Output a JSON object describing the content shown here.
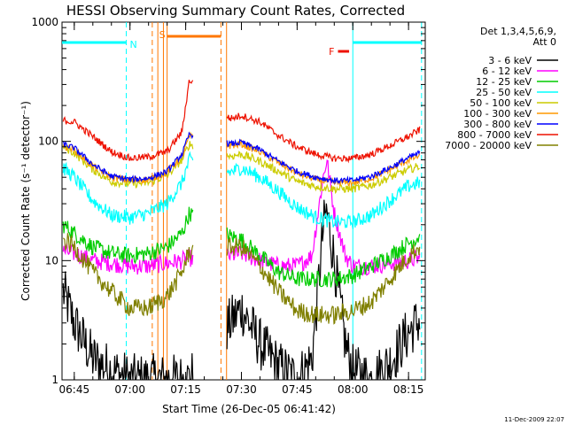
{
  "chart_data": {
    "type": "line",
    "title": "HESSI Observing Summary Count Rates, Corrected",
    "xlabel": "Start Time (26-Dec-05 06:41:42)",
    "ylabel": "Corrected Count Rate (s⁻¹ detector⁻¹)",
    "yscale": "log",
    "ylim": [
      1,
      1000
    ],
    "xlim": [
      "06:41:42",
      "08:19:30"
    ],
    "y_ticks": [
      "1",
      "10",
      "100",
      "1000"
    ],
    "x_ticks": [
      {
        "t": "06:45",
        "label": "06:45"
      },
      {
        "t": "07:00",
        "label": "07:00"
      },
      {
        "t": "07:15",
        "label": "07:15"
      },
      {
        "t": "07:30",
        "label": "07:30"
      },
      {
        "t": "07:45",
        "label": "07:45"
      },
      {
        "t": "08:00",
        "label": "08:00"
      },
      {
        "t": "08:15",
        "label": "08:15"
      }
    ],
    "legend": {
      "placement": "right",
      "header": [
        "Det 1,3,4,5,6,9,",
        "Att 0"
      ]
    },
    "data_gap": [
      "07:17:00",
      "07:26:00"
    ],
    "series": [
      {
        "name": "3 - 6 keV",
        "color": "#000000",
        "noise": 0.45,
        "points": [
          [
            "06:42",
            5.5
          ],
          [
            "06:45",
            3.0
          ],
          [
            "06:50",
            1.5
          ],
          [
            "06:55",
            1.2
          ],
          [
            "07:00",
            1.0
          ],
          [
            "07:05",
            1.0
          ],
          [
            "07:10",
            1.0
          ],
          [
            "07:14",
            1.0
          ],
          [
            "07:16",
            1.0
          ],
          [
            "07:27",
            3.0
          ],
          [
            "07:30",
            4.0
          ],
          [
            "07:35",
            2.0
          ],
          [
            "07:40",
            1.3
          ],
          [
            "07:45",
            1.0
          ],
          [
            "07:49",
            1.5
          ],
          [
            "07:52",
            18.0
          ],
          [
            "07:53",
            26.0
          ],
          [
            "07:55",
            10.0
          ],
          [
            "07:58",
            2.0
          ],
          [
            "08:00",
            1.2
          ],
          [
            "08:05",
            1.0
          ],
          [
            "08:10",
            1.4
          ],
          [
            "08:15",
            2.5
          ],
          [
            "08:18",
            3.2
          ]
        ]
      },
      {
        "name": "6 - 12 keV",
        "color": "#ff00ff",
        "noise": 0.15,
        "points": [
          [
            "06:42",
            12.0
          ],
          [
            "06:45",
            11.5
          ],
          [
            "06:50",
            10.0
          ],
          [
            "06:55",
            9.5
          ],
          [
            "07:00",
            9.0
          ],
          [
            "07:05",
            9.0
          ],
          [
            "07:10",
            9.5
          ],
          [
            "07:14",
            10.0
          ],
          [
            "07:16",
            10.5
          ],
          [
            "07:27",
            11.0
          ],
          [
            "07:30",
            11.5
          ],
          [
            "07:35",
            10.0
          ],
          [
            "07:40",
            9.0
          ],
          [
            "07:45",
            9.0
          ],
          [
            "07:49",
            11.0
          ],
          [
            "07:52",
            50.0
          ],
          [
            "07:53",
            70.0
          ],
          [
            "07:55",
            25.0
          ],
          [
            "07:58",
            11.0
          ],
          [
            "08:00",
            9.0
          ],
          [
            "08:05",
            9.0
          ],
          [
            "08:10",
            9.5
          ],
          [
            "08:15",
            10.0
          ],
          [
            "08:18",
            10.5
          ]
        ]
      },
      {
        "name": "12 - 25 keV",
        "color": "#00cc00",
        "noise": 0.14,
        "points": [
          [
            "06:42",
            20.0
          ],
          [
            "06:45",
            17.0
          ],
          [
            "06:50",
            13.0
          ],
          [
            "06:55",
            11.5
          ],
          [
            "07:00",
            11.0
          ],
          [
            "07:05",
            11.5
          ],
          [
            "07:10",
            13.0
          ],
          [
            "07:14",
            17.0
          ],
          [
            "07:16",
            25.0
          ],
          [
            "07:27",
            16.0
          ],
          [
            "07:30",
            15.0
          ],
          [
            "07:35",
            11.0
          ],
          [
            "07:40",
            8.0
          ],
          [
            "07:45",
            7.0
          ],
          [
            "07:50",
            7.0
          ],
          [
            "07:55",
            7.0
          ],
          [
            "08:00",
            7.5
          ],
          [
            "08:05",
            9.0
          ],
          [
            "08:10",
            11.0
          ],
          [
            "08:15",
            14.0
          ],
          [
            "08:18",
            16.0
          ]
        ]
      },
      {
        "name": "25 - 50 keV",
        "color": "#00ffff",
        "noise": 0.12,
        "points": [
          [
            "06:42",
            60.0
          ],
          [
            "06:45",
            50.0
          ],
          [
            "06:50",
            32.0
          ],
          [
            "06:55",
            24.0
          ],
          [
            "07:00",
            23.0
          ],
          [
            "07:05",
            25.0
          ],
          [
            "07:10",
            30.0
          ],
          [
            "07:14",
            45.0
          ],
          [
            "07:16",
            70.0
          ],
          [
            "07:27",
            55.0
          ],
          [
            "07:30",
            60.0
          ],
          [
            "07:35",
            50.0
          ],
          [
            "07:40",
            38.0
          ],
          [
            "07:45",
            28.0
          ],
          [
            "07:50",
            23.0
          ],
          [
            "07:55",
            21.0
          ],
          [
            "08:00",
            21.0
          ],
          [
            "08:05",
            24.0
          ],
          [
            "08:10",
            32.0
          ],
          [
            "08:15",
            42.0
          ],
          [
            "08:18",
            45.0
          ]
        ]
      },
      {
        "name": "50 - 100 keV",
        "color": "#cccc00",
        "noise": 0.07,
        "points": [
          [
            "06:42",
            90.0
          ],
          [
            "06:45",
            80.0
          ],
          [
            "06:50",
            58.0
          ],
          [
            "06:55",
            46.0
          ],
          [
            "07:00",
            44.0
          ],
          [
            "07:05",
            45.0
          ],
          [
            "07:10",
            52.0
          ],
          [
            "07:14",
            70.0
          ],
          [
            "07:16",
            95.0
          ],
          [
            "07:27",
            75.0
          ],
          [
            "07:30",
            78.0
          ],
          [
            "07:35",
            68.0
          ],
          [
            "07:40",
            56.0
          ],
          [
            "07:45",
            46.0
          ],
          [
            "07:50",
            42.0
          ],
          [
            "07:55",
            40.0
          ],
          [
            "08:00",
            40.0
          ],
          [
            "08:05",
            43.0
          ],
          [
            "08:10",
            50.0
          ],
          [
            "08:15",
            58.0
          ],
          [
            "08:18",
            62.0
          ]
        ]
      },
      {
        "name": "100 - 300 keV",
        "color": "#ff9900",
        "noise": 0.06,
        "points": [
          [
            "06:42",
            92.0
          ],
          [
            "06:45",
            85.0
          ],
          [
            "06:50",
            62.0
          ],
          [
            "06:55",
            50.0
          ],
          [
            "07:00",
            47.0
          ],
          [
            "07:05",
            48.0
          ],
          [
            "07:10",
            55.0
          ],
          [
            "07:14",
            75.0
          ],
          [
            "07:16",
            110.0
          ],
          [
            "07:27",
            92.0
          ],
          [
            "07:30",
            95.0
          ],
          [
            "07:35",
            82.0
          ],
          [
            "07:40",
            66.0
          ],
          [
            "07:45",
            54.0
          ],
          [
            "07:50",
            48.0
          ],
          [
            "07:55",
            45.0
          ],
          [
            "08:00",
            45.0
          ],
          [
            "08:05",
            49.0
          ],
          [
            "08:10",
            58.0
          ],
          [
            "08:15",
            70.0
          ],
          [
            "08:18",
            76.0
          ]
        ]
      },
      {
        "name": "300 - 800 keV",
        "color": "#0000ff",
        "noise": 0.05,
        "points": [
          [
            "06:42",
            95.0
          ],
          [
            "06:45",
            88.0
          ],
          [
            "06:50",
            64.0
          ],
          [
            "06:55",
            51.0
          ],
          [
            "07:00",
            48.0
          ],
          [
            "07:05",
            49.0
          ],
          [
            "07:10",
            56.0
          ],
          [
            "07:14",
            78.0
          ],
          [
            "07:16",
            115.0
          ],
          [
            "07:27",
            95.0
          ],
          [
            "07:30",
            98.0
          ],
          [
            "07:35",
            85.0
          ],
          [
            "07:40",
            68.0
          ],
          [
            "07:45",
            56.0
          ],
          [
            "07:50",
            50.0
          ],
          [
            "07:55",
            47.0
          ],
          [
            "08:00",
            47.0
          ],
          [
            "08:05",
            51.0
          ],
          [
            "08:10",
            60.0
          ],
          [
            "08:15",
            73.0
          ],
          [
            "08:18",
            80.0
          ]
        ]
      },
      {
        "name": "800 - 7000 keV",
        "color": "#ee1100",
        "noise": 0.06,
        "points": [
          [
            "06:42",
            150.0
          ],
          [
            "06:45",
            145.0
          ],
          [
            "06:50",
            110.0
          ],
          [
            "06:55",
            82.0
          ],
          [
            "07:00",
            72.0
          ],
          [
            "07:05",
            74.0
          ],
          [
            "07:10",
            82.0
          ],
          [
            "07:14",
            120.0
          ],
          [
            "07:16",
            330.0
          ],
          [
            "07:27",
            155.0
          ],
          [
            "07:30",
            165.0
          ],
          [
            "07:35",
            145.0
          ],
          [
            "07:40",
            112.0
          ],
          [
            "07:45",
            90.0
          ],
          [
            "07:50",
            78.0
          ],
          [
            "07:55",
            72.0
          ],
          [
            "08:00",
            72.0
          ],
          [
            "08:05",
            78.0
          ],
          [
            "08:10",
            92.0
          ],
          [
            "08:15",
            110.0
          ],
          [
            "08:18",
            125.0
          ]
        ]
      },
      {
        "name": "7000 - 20000 keV",
        "color": "#808000",
        "noise": 0.16,
        "points": [
          [
            "06:42",
            15.0
          ],
          [
            "06:45",
            13.0
          ],
          [
            "06:50",
            8.0
          ],
          [
            "06:55",
            5.5
          ],
          [
            "07:00",
            4.0
          ],
          [
            "07:05",
            4.0
          ],
          [
            "07:10",
            5.0
          ],
          [
            "07:14",
            8.0
          ],
          [
            "07:16",
            12.0
          ],
          [
            "07:27",
            13.0
          ],
          [
            "07:30",
            13.0
          ],
          [
            "07:35",
            9.0
          ],
          [
            "07:40",
            5.5
          ],
          [
            "07:45",
            3.8
          ],
          [
            "07:50",
            3.5
          ],
          [
            "07:55",
            3.5
          ],
          [
            "08:00",
            3.8
          ],
          [
            "08:05",
            4.5
          ],
          [
            "08:10",
            7.0
          ],
          [
            "08:15",
            11.0
          ],
          [
            "08:18",
            13.0
          ]
        ]
      }
    ],
    "annotations": {
      "night_bars": [
        {
          "from": "06:41:42",
          "to": "06:59:00",
          "label": "N"
        },
        {
          "from": "08:00:00",
          "to": "08:18:30",
          "label": ""
        }
      ],
      "saa": {
        "from": "07:10:00",
        "to": "07:24:30",
        "label": "S"
      },
      "flare": {
        "from": "07:56:00",
        "to": "07:59:00",
        "label": "F"
      },
      "vlines": [
        {
          "t": "06:59:00",
          "color": "#00ffff",
          "style": "dashed"
        },
        {
          "t": "08:00:00",
          "color": "#00ffff",
          "style": "solid"
        },
        {
          "t": "08:18:30",
          "color": "#00ffff",
          "style": "dashed"
        },
        {
          "t": "07:06:00",
          "color": "#ff7700",
          "style": "dashed"
        },
        {
          "t": "07:07:30",
          "color": "#ff7700",
          "style": "solid"
        },
        {
          "t": "07:09:00",
          "color": "#ff7700",
          "style": "solid"
        },
        {
          "t": "07:10:00",
          "color": "#ff7700",
          "style": "solid"
        },
        {
          "t": "07:24:30",
          "color": "#ff7700",
          "style": "dashed"
        },
        {
          "t": "07:26:00",
          "color": "#ff7700",
          "style": "solid"
        }
      ]
    }
  },
  "footer": {
    "timestamp": "11-Dec-2009 22:07"
  }
}
